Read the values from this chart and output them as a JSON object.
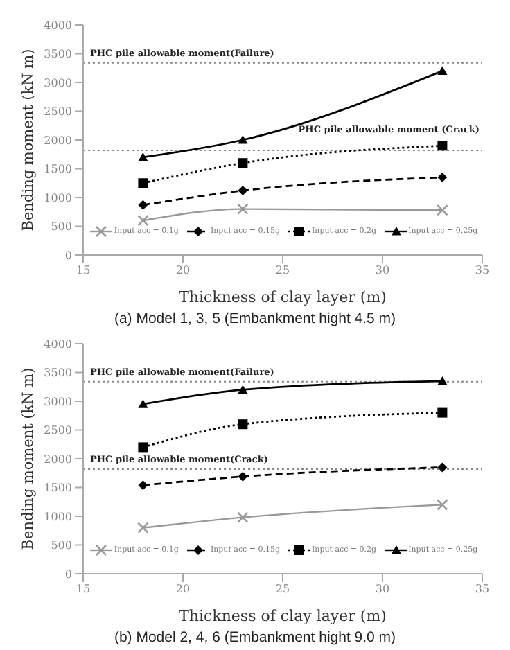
{
  "chart_data": [
    {
      "type": "line",
      "title": "(a) Model 1, 3, 5 (Embankment hight 4.5 m)",
      "xlabel": "Thickness of clay layer (m)",
      "ylabel": "Bending moment (kN m)",
      "x": [
        18,
        23,
        33
      ],
      "xlim": [
        15,
        35
      ],
      "xticks": [
        15,
        20,
        25,
        30,
        35
      ],
      "ylim": [
        0,
        4000
      ],
      "yticks": [
        0,
        500,
        1000,
        1500,
        2000,
        2500,
        3000,
        3500,
        4000
      ],
      "grid": false,
      "legend": "bottom",
      "ref_lines": [
        {
          "axis": "y",
          "value": 3340,
          "label": "PHC pile allowable moment(Failure)",
          "color": "#888888",
          "line_style": "dotted"
        },
        {
          "axis": "y",
          "value": 1820,
          "label": "PHC pile allowable moment (Crack)",
          "color": "#888888",
          "line_style": "dotted"
        }
      ],
      "series": [
        {
          "name": "Input acc = 0.1g",
          "color": "#999999",
          "marker": "cross",
          "line_style": "solid",
          "values": [
            600,
            800,
            780
          ]
        },
        {
          "name": "Input acc = 0.15g",
          "color": "#000000",
          "marker": "diamond",
          "line_style": "dashed",
          "values": [
            870,
            1120,
            1350
          ]
        },
        {
          "name": "Input acc = 0.2g",
          "color": "#000000",
          "marker": "square",
          "line_style": "dotted",
          "values": [
            1250,
            1600,
            1900
          ]
        },
        {
          "name": "Input acc = 0.25g",
          "color": "#000000",
          "marker": "triangle",
          "line_style": "solid",
          "values": [
            1700,
            2000,
            3200
          ]
        }
      ]
    },
    {
      "type": "line",
      "title": "(b) Model 2, 4, 6 (Embankment hight 9.0 m)",
      "xlabel": "Thickness of clay layer (m)",
      "ylabel": "Bending moment (kN m)",
      "x": [
        18,
        23,
        33
      ],
      "xlim": [
        15,
        35
      ],
      "xticks": [
        15,
        20,
        25,
        30,
        35
      ],
      "ylim": [
        0,
        4000
      ],
      "yticks": [
        0,
        500,
        1000,
        1500,
        2000,
        2500,
        3000,
        3500,
        4000
      ],
      "grid": false,
      "legend": "bottom",
      "ref_lines": [
        {
          "axis": "y",
          "value": 3340,
          "label": "PHC pile allowable moment(Failure)",
          "color": "#888888",
          "line_style": "dotted"
        },
        {
          "axis": "y",
          "value": 1820,
          "label": "PHC pile allowable moment(Crack)",
          "color": "#888888",
          "line_style": "dotted"
        }
      ],
      "series": [
        {
          "name": "Input acc = 0.1g",
          "color": "#999999",
          "marker": "cross",
          "line_style": "solid",
          "values": [
            800,
            980,
            1200
          ]
        },
        {
          "name": "Input acc = 0.15g",
          "color": "#000000",
          "marker": "diamond",
          "line_style": "dashed",
          "values": [
            1540,
            1690,
            1850
          ]
        },
        {
          "name": "Input acc = 0.2g",
          "color": "#000000",
          "marker": "square",
          "line_style": "dotted",
          "values": [
            2200,
            2600,
            2800
          ]
        },
        {
          "name": "Input acc = 0.25g",
          "color": "#000000",
          "marker": "triangle",
          "line_style": "solid",
          "values": [
            2950,
            3200,
            3350
          ]
        }
      ]
    }
  ]
}
